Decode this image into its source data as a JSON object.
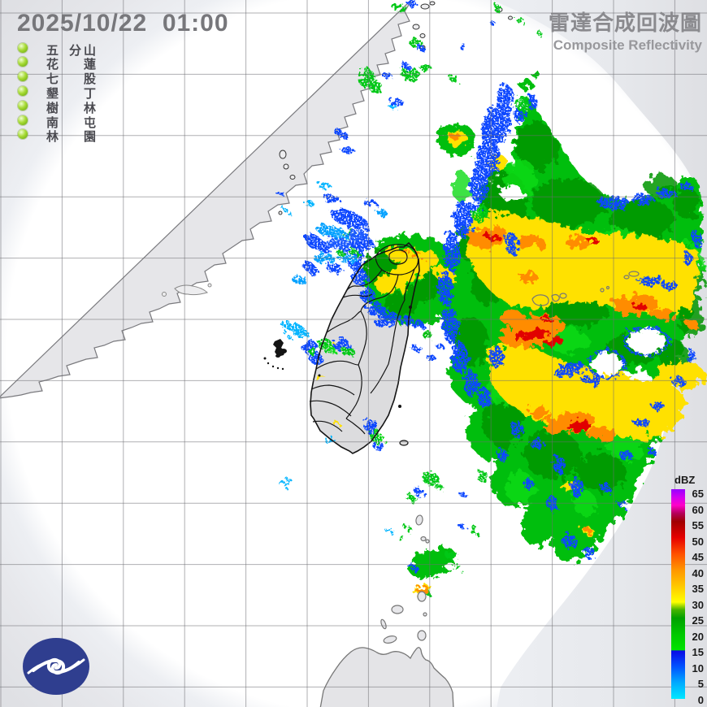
{
  "header": {
    "timestamp": "2025/10/22  01:00",
    "title_zh": "雷達合成回波圖",
    "title_en": "Composite Reflectivity"
  },
  "radar_stations": {
    "marker_color": "#8CC63F",
    "items": [
      {
        "name": "五分山",
        "chars": [
          "五",
          "分",
          "山"
        ]
      },
      {
        "name": "花蓮",
        "chars": [
          "花",
          "",
          "蓮"
        ]
      },
      {
        "name": "七股",
        "chars": [
          "七",
          "",
          "股"
        ]
      },
      {
        "name": "墾丁",
        "chars": [
          "墾",
          "",
          "丁"
        ]
      },
      {
        "name": "樹林",
        "chars": [
          "樹",
          "",
          "林"
        ]
      },
      {
        "name": "南屯",
        "chars": [
          "南",
          "",
          "屯"
        ]
      },
      {
        "name": "林園",
        "chars": [
          "林",
          "",
          "園"
        ]
      }
    ]
  },
  "legend": {
    "unit": "dBZ",
    "ticks": [
      65,
      60,
      55,
      50,
      45,
      40,
      35,
      30,
      25,
      20,
      15,
      10,
      5,
      0
    ],
    "gradient": [
      {
        "p": 0,
        "c": "#00E8FF"
      },
      {
        "p": 7.7,
        "c": "#00AAFF"
      },
      {
        "p": 15.4,
        "c": "#0052FF"
      },
      {
        "p": 22.9,
        "c": "#0A0AE6"
      },
      {
        "p": 23.3,
        "c": "#00E400"
      },
      {
        "p": 30.8,
        "c": "#00C800"
      },
      {
        "p": 38.5,
        "c": "#00A000"
      },
      {
        "p": 42.5,
        "c": "#46B400"
      },
      {
        "p": 46.2,
        "c": "#FFFF00"
      },
      {
        "p": 53.8,
        "c": "#FFC800"
      },
      {
        "p": 61.5,
        "c": "#FF9600"
      },
      {
        "p": 69.2,
        "c": "#FF5000"
      },
      {
        "p": 76.9,
        "c": "#E60000"
      },
      {
        "p": 84.6,
        "c": "#A00000"
      },
      {
        "p": 88.5,
        "c": "#B4005A"
      },
      {
        "p": 92.3,
        "c": "#FF00C8"
      },
      {
        "p": 96.2,
        "c": "#D200F0"
      },
      {
        "p": 100,
        "c": "#9600FF"
      }
    ]
  },
  "logo": {
    "color": "#2F3E8F",
    "label": "central-weather-administration"
  }
}
